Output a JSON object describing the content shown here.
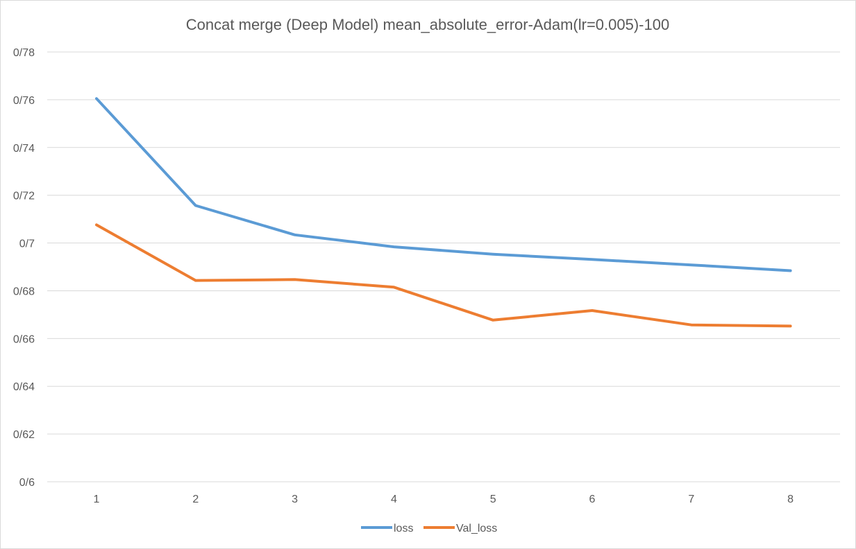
{
  "chart_data": {
    "type": "line",
    "title": "Concat merge (Deep Model) mean_absolute_error-Adam(lr=0.005)-100",
    "xlabel": "",
    "ylabel": "",
    "categories": [
      "1",
      "2",
      "3",
      "4",
      "5",
      "6",
      "7",
      "8"
    ],
    "ylim": [
      0.6,
      0.78
    ],
    "y_ticks": [
      {
        "value": 0.6,
        "label": "0/6"
      },
      {
        "value": 0.62,
        "label": "0/62"
      },
      {
        "value": 0.64,
        "label": "0/64"
      },
      {
        "value": 0.66,
        "label": "0/66"
      },
      {
        "value": 0.68,
        "label": "0/68"
      },
      {
        "value": 0.7,
        "label": "0/7"
      },
      {
        "value": 0.72,
        "label": "0/72"
      },
      {
        "value": 0.74,
        "label": "0/74"
      },
      {
        "value": 0.76,
        "label": "0/76"
      },
      {
        "value": 0.78,
        "label": "0/78"
      }
    ],
    "grid": true,
    "legend_position": "bottom",
    "series": [
      {
        "name": "loss",
        "color": "#5b9bd5",
        "values": [
          0.7605,
          0.7157,
          0.7034,
          0.6984,
          0.6953,
          0.6931,
          0.6908,
          0.6884
        ]
      },
      {
        "name": "Val_loss",
        "color": "#ed7d31",
        "values": [
          0.7076,
          0.6843,
          0.6847,
          0.6815,
          0.6677,
          0.6717,
          0.6657,
          0.6652
        ]
      }
    ]
  }
}
